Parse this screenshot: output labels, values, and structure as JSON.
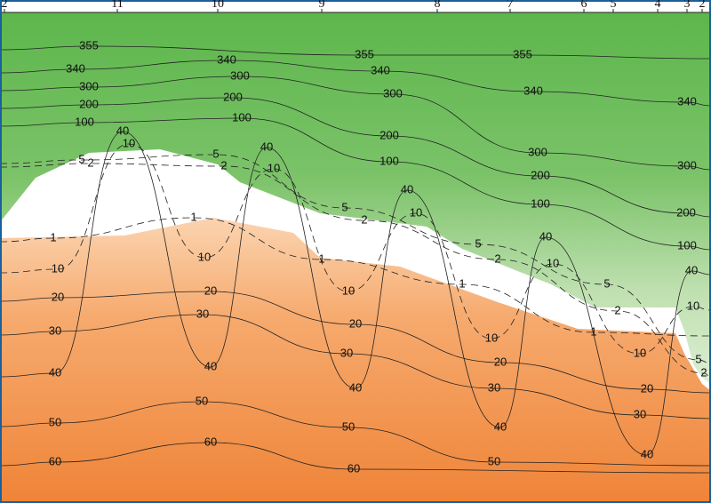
{
  "chart_data": {
    "type": "contour",
    "stations": [
      "2",
      "11",
      "10",
      "9",
      "8",
      "7",
      "6",
      "5",
      "4",
      "3",
      "2"
    ],
    "contour_labels": [
      355,
      340,
      300,
      200,
      100,
      40,
      10,
      5,
      2,
      340,
      300,
      200,
      100,
      40,
      10,
      5,
      2,
      1,
      355,
      340,
      300,
      200,
      100,
      40,
      10,
      5,
      2,
      1,
      355,
      340,
      300,
      200,
      100,
      40,
      10,
      5,
      2,
      1,
      340,
      300,
      200,
      100,
      40,
      10,
      5,
      2,
      1,
      5,
      2,
      1,
      10,
      20,
      30,
      40,
      50,
      60,
      10,
      20,
      30,
      40,
      50,
      60,
      10,
      20,
      30,
      40,
      50,
      60,
      10,
      20,
      30,
      40,
      50,
      10,
      20,
      30,
      40
    ]
  }
}
